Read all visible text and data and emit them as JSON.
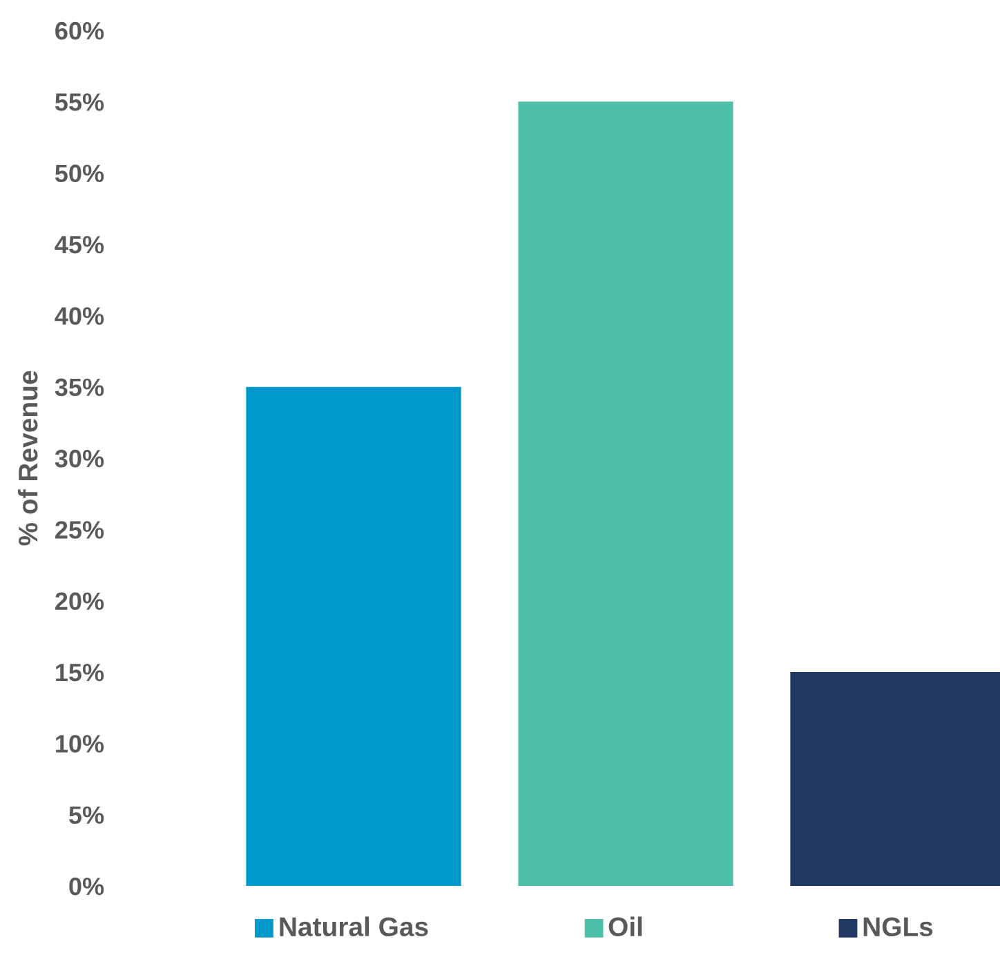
{
  "chart_data": {
    "type": "bar",
    "ylabel": "% of Revenue",
    "categories": [
      "Natural Gas",
      "Oil",
      "NGLs"
    ],
    "values": [
      35,
      55,
      15
    ],
    "colors": [
      "#0099cc",
      "#4dc0aa",
      "#203864"
    ],
    "ylim": [
      0,
      60
    ],
    "yticks": [
      {
        "value": 0,
        "label": "0%"
      },
      {
        "value": 5,
        "label": "5%"
      },
      {
        "value": 10,
        "label": "10%"
      },
      {
        "value": 15,
        "label": "15%"
      },
      {
        "value": 20,
        "label": "20%"
      },
      {
        "value": 25,
        "label": "25%"
      },
      {
        "value": 30,
        "label": "30%"
      },
      {
        "value": 35,
        "label": "35%"
      },
      {
        "value": 40,
        "label": "40%"
      },
      {
        "value": 45,
        "label": "45%"
      },
      {
        "value": 50,
        "label": "50%"
      },
      {
        "value": 55,
        "label": "55%"
      },
      {
        "value": 60,
        "label": "60%"
      }
    ],
    "grid": false
  }
}
